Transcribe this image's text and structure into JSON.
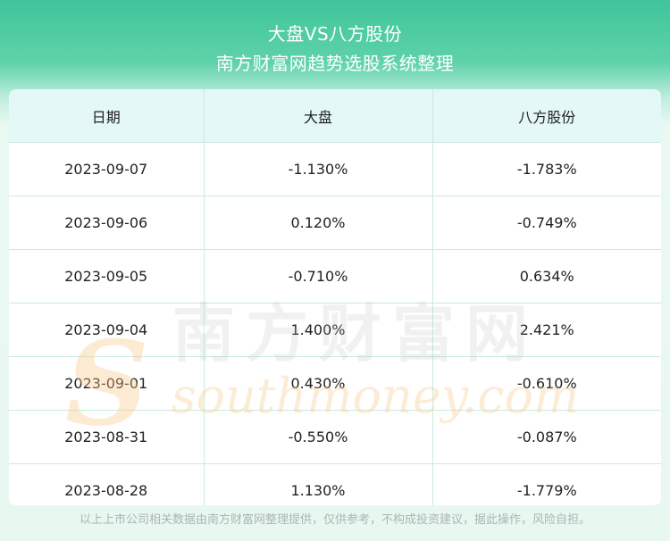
{
  "header": {
    "title": "大盘VS八方股份",
    "subtitle": "南方财富网趋势选股系统整理"
  },
  "table": {
    "columns": [
      "日期",
      "大盘",
      "八方股份"
    ],
    "rows": [
      [
        "2023-09-07",
        "-1.130%",
        "-1.783%"
      ],
      [
        "2023-09-06",
        "0.120%",
        "-0.749%"
      ],
      [
        "2023-09-05",
        "-0.710%",
        "0.634%"
      ],
      [
        "2023-09-04",
        "1.400%",
        "2.421%"
      ],
      [
        "2023-09-01",
        "0.430%",
        "-0.610%"
      ],
      [
        "2023-08-31",
        "-0.550%",
        "-0.087%"
      ],
      [
        "2023-08-28",
        "1.130%",
        "-1.779%"
      ]
    ]
  },
  "watermark": {
    "cn": "南方财富网",
    "en": "southmoney.com"
  },
  "footer": {
    "disclaimer": "以上上市公司相关数据由南方财富网整理提供，仅供参考，不构成投资建议，据此操作，风险自担。"
  },
  "colors": {
    "header_green": "#3fc49b",
    "table_header_bg": "#e3f8f7",
    "grid_line": "#c9ebe0",
    "footer_text": "#a9b6b2"
  }
}
